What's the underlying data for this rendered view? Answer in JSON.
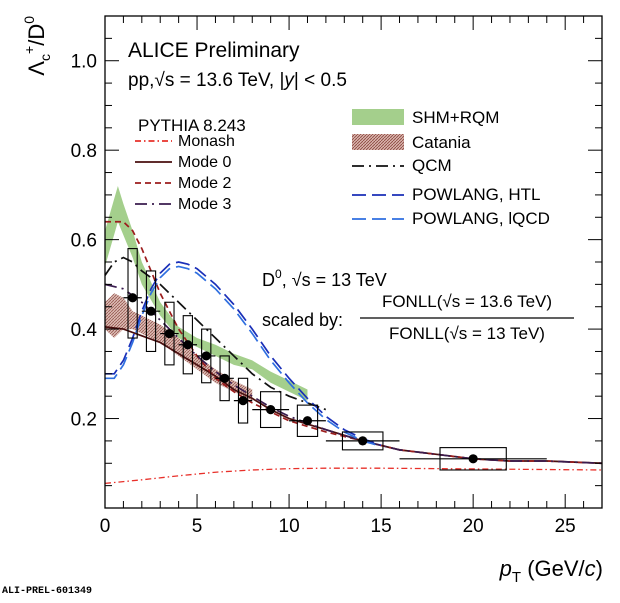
{
  "header": {
    "collaboration": "ALICE Preliminary",
    "system_prefix": "pp,",
    "system_energy": "= 13.6 TeV, |",
    "system_y": "y",
    "system_rapidity": "| < 0.5"
  },
  "legend_left": {
    "title": "PYTHIA 8.243",
    "entries": [
      "Monash",
      "Mode 0",
      "Mode 2",
      "Mode 3"
    ]
  },
  "legend_right": {
    "entries": [
      "SHM+RQM",
      "Catania",
      "QCM",
      "POWLANG, HTL",
      "POWLANG, lQCD"
    ]
  },
  "reference_note": {
    "line1_prefix": "D",
    "line1_sup": "0",
    "line1_rest": ", √s = 13 TeV",
    "scaled_by": "scaled by:",
    "numerator": "FONLL(√s = 13.6 TeV)",
    "denominator": "FONLL(√s = 13 TeV)"
  },
  "source_tag": "ALI-PREL-601349",
  "chart_data": {
    "type": "scatter",
    "xlabel_main": "p",
    "xlabel_sub": "T",
    "xlabel_unit": " (GeV/",
    "xlabel_c": "c",
    "xlabel_close": ")",
    "ylabel_main": "Λ",
    "ylabel_sub": "c",
    "ylabel_sup": "+",
    "ylabel_slash": "/D",
    "ylabel_sup2": "0",
    "xlim": [
      0,
      27
    ],
    "ylim": [
      0,
      1.1
    ],
    "x_ticks": [
      0,
      5,
      10,
      15,
      20,
      25
    ],
    "y_ticks": [
      0.2,
      0.4,
      0.6,
      0.8,
      1.0
    ],
    "x_tick_labels": [
      "0",
      "5",
      "10",
      "15",
      "20",
      "25"
    ],
    "y_tick_labels": [
      "0.2",
      "0.4",
      "0.6",
      "0.8",
      "1.0"
    ],
    "data": {
      "x": [
        1.5,
        2.5,
        3.5,
        4.5,
        5.5,
        6.5,
        7.5,
        9.0,
        11.0,
        14.0,
        20.0
      ],
      "y": [
        0.47,
        0.44,
        0.39,
        0.365,
        0.34,
        0.29,
        0.24,
        0.22,
        0.195,
        0.15,
        0.11
      ],
      "x_err": [
        0.5,
        0.5,
        0.5,
        0.5,
        0.5,
        0.5,
        0.5,
        1.0,
        1.0,
        2.0,
        4.0
      ],
      "syst_lo": [
        0.38,
        0.35,
        0.32,
        0.3,
        0.28,
        0.24,
        0.19,
        0.18,
        0.16,
        0.13,
        0.085
      ],
      "syst_hi": [
        0.58,
        0.53,
        0.46,
        0.43,
        0.4,
        0.34,
        0.29,
        0.26,
        0.23,
        0.17,
        0.135
      ]
    },
    "series": [
      {
        "name": "Monash",
        "color": "#e8302a",
        "dash": "dashdot",
        "x": [
          0,
          2,
          4,
          6,
          8,
          10,
          12,
          15,
          18,
          21,
          24,
          27
        ],
        "y": [
          0.055,
          0.063,
          0.072,
          0.08,
          0.085,
          0.088,
          0.089,
          0.089,
          0.088,
          0.087,
          0.086,
          0.085
        ]
      },
      {
        "name": "Mode 0",
        "color": "#4a0f0f",
        "dash": "solid",
        "x": [
          0,
          1,
          2,
          3,
          4,
          5,
          6,
          7,
          8,
          9,
          10,
          12,
          14,
          16,
          18,
          20,
          22,
          24,
          27
        ],
        "y": [
          0.405,
          0.4,
          0.385,
          0.37,
          0.345,
          0.32,
          0.295,
          0.265,
          0.245,
          0.22,
          0.2,
          0.175,
          0.15,
          0.13,
          0.12,
          0.11,
          0.105,
          0.105,
          0.1
        ]
      },
      {
        "name": "Mode 2",
        "color": "#9c1d1d",
        "dash": "dashed",
        "x": [
          0,
          1,
          1.5,
          2,
          3,
          4,
          5,
          6,
          7,
          8,
          9,
          10,
          12,
          14,
          16,
          18,
          20,
          22,
          24,
          27
        ],
        "y": [
          0.64,
          0.64,
          0.62,
          0.58,
          0.48,
          0.4,
          0.34,
          0.29,
          0.26,
          0.235,
          0.215,
          0.195,
          0.17,
          0.15,
          0.13,
          0.12,
          0.11,
          0.105,
          0.105,
          0.1
        ]
      },
      {
        "name": "Mode 3",
        "color": "#3a1c4f",
        "dash": "longdashdot",
        "x": [
          0,
          1,
          2,
          3,
          4,
          5,
          6,
          7,
          8,
          9,
          10,
          12,
          14,
          16,
          18,
          20,
          22,
          24,
          27
        ],
        "y": [
          0.5,
          0.49,
          0.46,
          0.42,
          0.38,
          0.34,
          0.305,
          0.275,
          0.25,
          0.225,
          0.205,
          0.175,
          0.15,
          0.13,
          0.12,
          0.11,
          0.105,
          0.105,
          0.1
        ]
      },
      {
        "name": "QCM",
        "color": "#111111",
        "dash": "longdashdot",
        "x": [
          0,
          0.5,
          1,
          1.5,
          2,
          3,
          4,
          5,
          6,
          7,
          8,
          9,
          10,
          12
        ],
        "y": [
          0.52,
          0.55,
          0.56,
          0.55,
          0.53,
          0.5,
          0.46,
          0.42,
          0.38,
          0.34,
          0.3,
          0.27,
          0.25,
          0.22
        ]
      },
      {
        "name": "POWLANG, HTL",
        "color": "#1a2fb8",
        "dash": "longdash",
        "x": [
          0,
          0.5,
          1,
          1.5,
          2,
          2.5,
          3,
          3.5,
          4,
          4.5,
          5,
          6,
          7,
          8,
          9,
          10,
          11,
          12,
          13,
          14,
          15
        ],
        "y": [
          0.3,
          0.3,
          0.33,
          0.38,
          0.44,
          0.49,
          0.525,
          0.545,
          0.55,
          0.545,
          0.535,
          0.5,
          0.455,
          0.4,
          0.34,
          0.29,
          0.245,
          0.205,
          0.175,
          0.155,
          0.14
        ]
      },
      {
        "name": "POWLANG, lQCD",
        "color": "#2f6fe0",
        "dash": "longdash",
        "x": [
          0,
          0.5,
          1,
          1.5,
          2,
          2.5,
          3,
          3.5,
          4,
          4.5,
          5,
          6,
          7,
          8,
          9,
          10,
          11,
          12,
          13,
          14,
          15
        ],
        "y": [
          0.29,
          0.29,
          0.32,
          0.37,
          0.43,
          0.48,
          0.515,
          0.535,
          0.54,
          0.535,
          0.525,
          0.49,
          0.445,
          0.39,
          0.33,
          0.28,
          0.235,
          0.198,
          0.17,
          0.15,
          0.138
        ]
      }
    ],
    "bands": [
      {
        "name": "SHM+RQM",
        "color": "#a4cf8c",
        "x": [
          0,
          0.7,
          1,
          1.5,
          2,
          3,
          4,
          5,
          6,
          7,
          8,
          9,
          10,
          11
        ],
        "lo": [
          0.54,
          0.64,
          0.61,
          0.56,
          0.5,
          0.43,
          0.38,
          0.36,
          0.34,
          0.32,
          0.31,
          0.28,
          0.26,
          0.24
        ],
        "hi": [
          0.62,
          0.72,
          0.68,
          0.62,
          0.55,
          0.46,
          0.405,
          0.38,
          0.365,
          0.345,
          0.33,
          0.305,
          0.285,
          0.265
        ]
      },
      {
        "name": "Catania",
        "color": "#b07a70",
        "x": [
          0,
          0.5,
          1,
          1.5,
          2,
          3,
          4,
          5,
          6,
          7,
          8
        ],
        "lo": [
          0.4,
          0.38,
          0.4,
          0.4,
          0.39,
          0.37,
          0.34,
          0.31,
          0.28,
          0.26,
          0.24
        ],
        "hi": [
          0.46,
          0.48,
          0.47,
          0.44,
          0.43,
          0.41,
          0.38,
          0.34,
          0.31,
          0.285,
          0.265
        ]
      }
    ]
  }
}
